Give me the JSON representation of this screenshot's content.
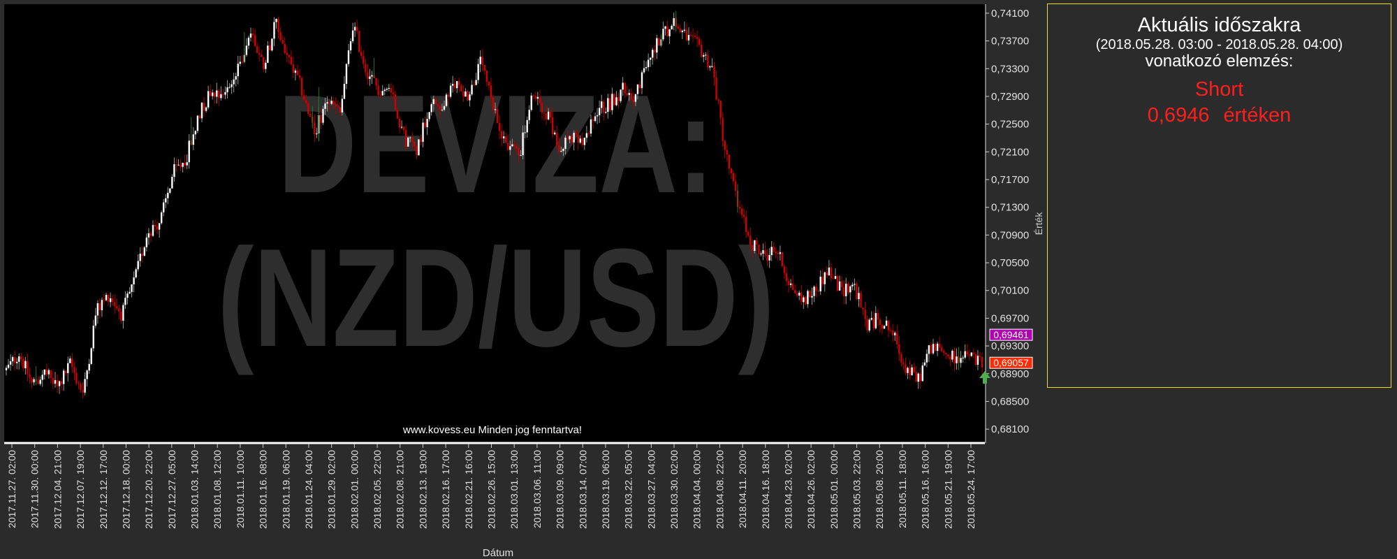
{
  "chart_data": {
    "type": "candlestick",
    "watermark_line1": "DEVIZA:",
    "watermark_line2": "(NZD/USD)",
    "copyright": "www.kovess.eu Minden jog fenntartva!",
    "xlabel": "Dátum",
    "ylabel": "Érték",
    "ylim": [
      0.679,
      0.7423
    ],
    "y_ticks": [
      "0,74100",
      "0,73700",
      "0,73300",
      "0,72900",
      "0,72500",
      "0,72100",
      "0,71700",
      "0,71300",
      "0,70900",
      "0,70500",
      "0,70100",
      "0,69700",
      "0,69300",
      "0,68900",
      "0,68500",
      "0,68100"
    ],
    "x_ticks": [
      "2017.11.27. 02:00",
      "2017.11.30. 00:00",
      "2017.12.04. 21:00",
      "2017.12.07. 19:00",
      "2017.12.12. 17:00",
      "2017.12.18. 00:00",
      "2017.12.20. 22:00",
      "2017.12.27. 05:00",
      "2018.01.03. 14:00",
      "2018.01.08. 12:00",
      "2018.01.11. 10:00",
      "2018.01.16. 08:00",
      "2018.01.19. 06:00",
      "2018.01.24. 04:00",
      "2018.01.29. 02:00",
      "2018.02.01. 00:00",
      "2018.02.05. 22:00",
      "2018.02.08. 21:00",
      "2018.02.13. 19:00",
      "2018.02.16. 17:00",
      "2018.02.21. 16:00",
      "2018.02.26. 15:00",
      "2018.03.01. 13:00",
      "2018.03.06. 11:00",
      "2018.03.09. 09:00",
      "2018.03.14. 07:00",
      "2018.03.19. 06:00",
      "2018.03.22. 05:00",
      "2018.03.27. 04:00",
      "2018.03.30. 02:00",
      "2018.04.04. 00:00",
      "2018.04.08. 22:00",
      "2018.04.11. 20:00",
      "2018.04.16. 18:00",
      "2018.04.23. 02:00",
      "2018.04.26. 02:00",
      "2018.05.01. 00:00",
      "2018.05.03. 22:00",
      "2018.05.08. 20:00",
      "2018.05.11. 18:00",
      "2018.05.16. 16:00",
      "2018.05.21. 19:00",
      "2018.05.24. 17:00"
    ],
    "price_path": [
      [
        0,
        0.6895
      ],
      [
        1,
        0.692
      ],
      [
        2,
        0.6875
      ],
      [
        3,
        0.6892
      ],
      [
        4,
        0.687
      ],
      [
        5,
        0.6905
      ],
      [
        6,
        0.686
      ],
      [
        7,
        0.698
      ],
      [
        8,
        0.7005
      ],
      [
        9,
        0.6975
      ],
      [
        10,
        0.7025
      ],
      [
        11,
        0.7095
      ],
      [
        12,
        0.711
      ],
      [
        13,
        0.718
      ],
      [
        14,
        0.72
      ],
      [
        15,
        0.7265
      ],
      [
        16,
        0.73
      ],
      [
        17,
        0.7295
      ],
      [
        18,
        0.7325
      ],
      [
        19,
        0.7385
      ],
      [
        20,
        0.7335
      ],
      [
        21,
        0.7395
      ],
      [
        22,
        0.734
      ],
      [
        23,
        0.73
      ],
      [
        24,
        0.7235
      ],
      [
        25,
        0.7285
      ],
      [
        26,
        0.7265
      ],
      [
        27,
        0.7395
      ],
      [
        28,
        0.733
      ],
      [
        29,
        0.73
      ],
      [
        30,
        0.73
      ],
      [
        31,
        0.723
      ],
      [
        32,
        0.7215
      ],
      [
        33,
        0.728
      ],
      [
        34,
        0.7275
      ],
      [
        35,
        0.731
      ],
      [
        36,
        0.729
      ],
      [
        37,
        0.734
      ],
      [
        38,
        0.7265
      ],
      [
        39,
        0.722
      ],
      [
        40,
        0.721
      ],
      [
        41,
        0.729
      ],
      [
        42,
        0.727
      ],
      [
        43,
        0.722
      ],
      [
        44,
        0.723
      ],
      [
        45,
        0.722
      ],
      [
        46,
        0.727
      ],
      [
        47,
        0.728
      ],
      [
        48,
        0.73
      ],
      [
        49,
        0.729
      ],
      [
        50,
        0.734
      ],
      [
        51,
        0.738
      ],
      [
        52,
        0.7395
      ],
      [
        53,
        0.7375
      ],
      [
        54,
        0.736
      ],
      [
        55,
        0.733
      ],
      [
        56,
        0.721
      ],
      [
        57,
        0.713
      ],
      [
        58,
        0.708
      ],
      [
        59,
        0.706
      ],
      [
        60,
        0.707
      ],
      [
        61,
        0.702
      ],
      [
        62,
        0.6995
      ],
      [
        63,
        0.701
      ],
      [
        64,
        0.704
      ],
      [
        65,
        0.701
      ],
      [
        66,
        0.702
      ],
      [
        67,
        0.696
      ],
      [
        68,
        0.697
      ],
      [
        69,
        0.695
      ],
      [
        70,
        0.69
      ],
      [
        71,
        0.688
      ],
      [
        72,
        0.693
      ],
      [
        73,
        0.692
      ],
      [
        74,
        0.691
      ],
      [
        75,
        0.6915
      ],
      [
        76,
        0.6905
      ]
    ],
    "markers": [
      {
        "label": "0,69461",
        "value": 0.69461,
        "color": "#b000b0"
      },
      {
        "label": "0,69057",
        "value": 0.69057,
        "color": "#ff2a00"
      }
    ]
  },
  "analysis_panel": {
    "title": "Aktuális időszakra",
    "range": "(2018.05.28. 03:00 - 2018.05.28. 04:00)",
    "subtitle": "vonatkozó elemzés:",
    "signal": "Short",
    "value": "0,6946",
    "value_suffix": "értéken"
  },
  "colors": {
    "background": "#2b2b2b",
    "plot_bg": "#000000",
    "up_candle": "#ffffff",
    "down_candle": "#d00000",
    "panel_border": "#e6e600",
    "signal": "#ff1e1e"
  }
}
